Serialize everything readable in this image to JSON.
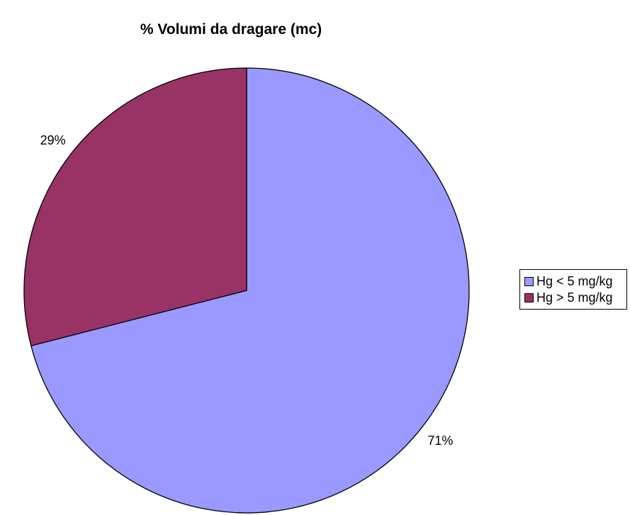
{
  "chart_data": {
    "type": "pie",
    "title": "% Volumi da dragare (mc)",
    "categories": [
      "Hg < 5 mg/kg",
      "Hg > 5 mg/kg"
    ],
    "values": [
      71,
      29
    ],
    "value_labels": [
      "71%",
      "29%"
    ],
    "colors": [
      "#9999ff",
      "#993366"
    ],
    "start_angle_deg": 0,
    "direction": "clockwise",
    "legend_position": "right"
  }
}
